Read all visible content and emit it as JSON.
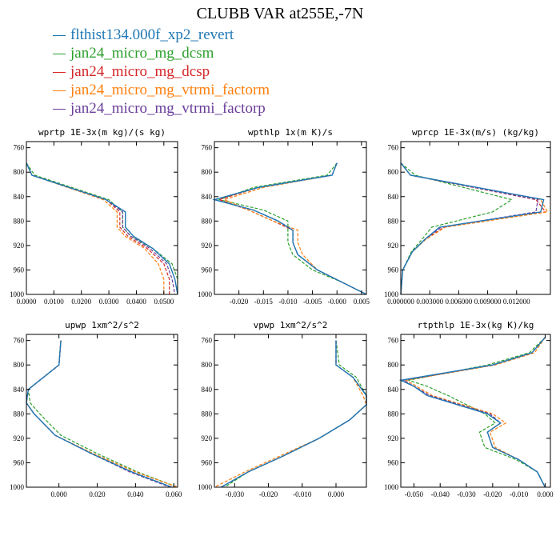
{
  "title": "CLUBB VAR at255E,-7N",
  "legend": [
    {
      "name": "flthist134.000f_xp2_revert",
      "color": "#1f77b4",
      "dash": false
    },
    {
      "name": "jan24_micro_mg_dcsm",
      "color": "#2ca02c",
      "dash": true
    },
    {
      "name": "jan24_micro_mg_dcsp",
      "color": "#d62728",
      "dash": true
    },
    {
      "name": "jan24_micro_mg_vtrmi_factorm",
      "color": "#ff7f0e",
      "dash": true
    },
    {
      "name": "jan24_micro_mg_vtrmi_factorp",
      "color": "#6a3d9a",
      "dash": true
    }
  ],
  "chart_data": [
    {
      "type": "line",
      "title": "wprtp  1E-3x(m kg)/(s kg)",
      "xlim": [
        0,
        0.055
      ],
      "ylim": [
        1000,
        750
      ],
      "xticks": [
        0,
        0.01,
        0.02,
        0.03,
        0.04,
        0.05
      ],
      "xtick_labels": [
        "0.0000",
        "0.0100",
        "0.0200",
        "0.0300",
        "0.0400",
        "0.0500"
      ],
      "yticks": [
        760,
        800,
        840,
        880,
        920,
        960,
        1000
      ],
      "y": [
        785,
        805,
        845,
        865,
        890,
        905,
        925,
        950,
        975,
        1000
      ],
      "series": [
        {
          "name": "flthist134.000f_xp2_revert",
          "x": [
            0,
            0.002,
            0.029,
            0.036,
            0.036,
            0.039,
            0.046,
            0.052,
            0.054,
            0.055
          ]
        },
        {
          "name": "jan24_micro_mg_dcsm",
          "x": [
            0,
            0.003,
            0.03,
            0.035,
            0.035,
            0.038,
            0.046,
            0.053,
            0.055,
            0.055
          ]
        },
        {
          "name": "jan24_micro_mg_dcsp",
          "x": [
            0,
            0.002,
            0.029,
            0.034,
            0.034,
            0.037,
            0.044,
            0.05,
            0.052,
            0.052
          ]
        },
        {
          "name": "jan24_micro_mg_vtrmi_factorm",
          "x": [
            0,
            0.002,
            0.028,
            0.033,
            0.033,
            0.036,
            0.043,
            0.048,
            0.05,
            0.05
          ]
        },
        {
          "name": "jan24_micro_mg_vtrmi_factorp",
          "x": [
            0,
            0.002,
            0.029,
            0.035,
            0.035,
            0.038,
            0.045,
            0.051,
            0.053,
            0.054
          ]
        }
      ]
    },
    {
      "type": "line",
      "title": "wpthlp  1x(m K)/s",
      "xlim": [
        -0.025,
        0.006
      ],
      "ylim": [
        1000,
        750
      ],
      "xticks": [
        -0.02,
        -0.015,
        -0.01,
        -0.005,
        0,
        0.005
      ],
      "xtick_labels": [
        "-0.020",
        "-0.015",
        "-0.010",
        "-0.005",
        "-0.000",
        "0.005"
      ],
      "yticks": [
        760,
        800,
        840,
        880,
        920,
        960,
        1000
      ],
      "y": [
        785,
        805,
        825,
        845,
        862,
        880,
        895,
        915,
        935,
        960,
        980,
        1000
      ],
      "series": [
        {
          "name": "flthist134.000f_xp2_revert",
          "x": [
            0,
            -0.001,
            -0.016,
            -0.025,
            -0.017,
            -0.012,
            -0.009,
            -0.009,
            -0.008,
            -0.004,
            0.001,
            0.006
          ]
        },
        {
          "name": "jan24_micro_mg_dcsm",
          "x": [
            0,
            -0.002,
            -0.017,
            -0.024,
            -0.015,
            -0.01,
            -0.01,
            -0.01,
            -0.009,
            -0.005,
            0.001,
            0.006
          ]
        },
        {
          "name": "jan24_micro_mg_dcsp",
          "x": [
            0,
            -0.001,
            -0.016,
            -0.024,
            -0.018,
            -0.013,
            -0.009,
            -0.009,
            -0.008,
            -0.004,
            0.001,
            0.006
          ]
        },
        {
          "name": "jan24_micro_mg_vtrmi_factorm",
          "x": [
            0,
            -0.001,
            -0.015,
            -0.023,
            -0.018,
            -0.013,
            -0.008,
            -0.008,
            -0.007,
            -0.004,
            0.001,
            0.006
          ]
        },
        {
          "name": "jan24_micro_mg_vtrmi_factorp",
          "x": [
            0,
            -0.001,
            -0.016,
            -0.025,
            -0.017,
            -0.012,
            -0.009,
            -0.009,
            -0.008,
            -0.004,
            0.001,
            0.006
          ]
        }
      ]
    },
    {
      "type": "line",
      "title": "wprcp  1E-3x(m/s) (kg/kg)",
      "xlim": [
        0,
        0.0155
      ],
      "ylim": [
        1000,
        750
      ],
      "xticks": [
        0,
        0.003,
        0.006,
        0.009,
        0.012
      ],
      "xtick_labels": [
        "0.000000",
        "0.003000",
        "0.006000",
        "0.009000",
        "0.012000"
      ],
      "yticks": [
        760,
        800,
        840,
        880,
        920,
        960,
        1000
      ],
      "y": [
        785,
        805,
        845,
        865,
        890,
        910,
        930,
        960,
        1000
      ],
      "series": [
        {
          "name": "flthist134.000f_xp2_revert",
          "x": [
            0,
            0.001,
            0.0148,
            0.0145,
            0.004,
            0.0025,
            0.0012,
            0.0002,
            0
          ]
        },
        {
          "name": "jan24_micro_mg_dcsm",
          "x": [
            0,
            0.0015,
            0.0115,
            0.0095,
            0.0032,
            0.0022,
            0.0011,
            0.0002,
            0
          ]
        },
        {
          "name": "jan24_micro_mg_dcsp",
          "x": [
            0,
            0.001,
            0.014,
            0.015,
            0.0045,
            0.0025,
            0.0012,
            0.0002,
            0
          ]
        },
        {
          "name": "jan24_micro_mg_vtrmi_factorm",
          "x": [
            0,
            0.001,
            0.0145,
            0.0152,
            0.0046,
            0.0026,
            0.0012,
            0.0002,
            0
          ]
        },
        {
          "name": "jan24_micro_mg_vtrmi_factorp",
          "x": [
            0,
            0.001,
            0.0142,
            0.014,
            0.0042,
            0.0025,
            0.0012,
            0.0002,
            0
          ]
        }
      ]
    },
    {
      "type": "line",
      "title": "upwp  1xm^2/s^2",
      "xlim": [
        -0.017,
        0.062
      ],
      "ylim": [
        1000,
        750
      ],
      "xticks": [
        0,
        0.02,
        0.04,
        0.06
      ],
      "xtick_labels": [
        "0.000",
        "0.020",
        "0.040",
        "0.060"
      ],
      "yticks": [
        760,
        800,
        840,
        880,
        920,
        960,
        1000
      ],
      "y": [
        760,
        800,
        840,
        862,
        880,
        915,
        945,
        975,
        1000
      ],
      "series": [
        {
          "name": "flthist134.000f_xp2_revert",
          "x": [
            0.001,
            0,
            -0.016,
            -0.017,
            -0.013,
            -0.002,
            0.017,
            0.038,
            0.059
          ]
        },
        {
          "name": "jan24_micro_mg_dcsm",
          "x": [
            0.001,
            0,
            -0.016,
            -0.015,
            -0.01,
            0.001,
            0.02,
            0.041,
            0.062
          ]
        },
        {
          "name": "jan24_micro_mg_dcsp",
          "x": [
            0.001,
            0,
            -0.016,
            -0.017,
            -0.013,
            -0.002,
            0.017,
            0.038,
            0.059
          ]
        },
        {
          "name": "jan24_micro_mg_vtrmi_factorm",
          "x": [
            0.001,
            0,
            -0.016,
            -0.017,
            -0.013,
            -0.002,
            0.018,
            0.04,
            0.062
          ]
        },
        {
          "name": "jan24_micro_mg_vtrmi_factorp",
          "x": [
            0.001,
            0,
            -0.016,
            -0.017,
            -0.013,
            -0.002,
            0.017,
            0.037,
            0.058
          ]
        }
      ]
    },
    {
      "type": "line",
      "title": "vpwp  1xm^2/s^2",
      "xlim": [
        -0.036,
        0.009
      ],
      "ylim": [
        1000,
        750
      ],
      "xticks": [
        -0.03,
        -0.02,
        -0.01,
        0
      ],
      "xtick_labels": [
        "-0.030",
        "-0.020",
        "-0.010",
        "0.000"
      ],
      "yticks": [
        760,
        800,
        840,
        880,
        920,
        960,
        1000
      ],
      "y": [
        760,
        800,
        820,
        850,
        865,
        890,
        920,
        950,
        975,
        1000
      ],
      "series": [
        {
          "name": "flthist134.000f_xp2_revert",
          "x": [
            0,
            0,
            0.005,
            0.009,
            0.009,
            0.004,
            -0.005,
            -0.016,
            -0.026,
            -0.034
          ]
        },
        {
          "name": "jan24_micro_mg_dcsm",
          "x": [
            0,
            0.001,
            0.006,
            0.009,
            0.009,
            0.004,
            -0.005,
            -0.016,
            -0.026,
            -0.033
          ]
        },
        {
          "name": "jan24_micro_mg_dcsp",
          "x": [
            0,
            0,
            0.005,
            0.009,
            0.009,
            0.004,
            -0.005,
            -0.016,
            -0.026,
            -0.034
          ]
        },
        {
          "name": "jan24_micro_mg_vtrmi_factorm",
          "x": [
            0,
            0,
            0.005,
            0.008,
            0.009,
            0.004,
            -0.005,
            -0.017,
            -0.027,
            -0.036
          ]
        },
        {
          "name": "jan24_micro_mg_vtrmi_factorp",
          "x": [
            0,
            0,
            0.005,
            0.009,
            0.009,
            0.004,
            -0.005,
            -0.016,
            -0.026,
            -0.034
          ]
        }
      ]
    },
    {
      "type": "line",
      "title": "rtpthlp  1E-3x(kg K)/kg",
      "xlim": [
        -0.055,
        0.002
      ],
      "ylim": [
        1000,
        750
      ],
      "xticks": [
        -0.05,
        -0.04,
        -0.03,
        -0.02,
        -0.01,
        0
      ],
      "xtick_labels": [
        "-0.050",
        "-0.040",
        "-0.030",
        "-0.020",
        "-0.010",
        "0.000"
      ],
      "yticks": [
        760,
        800,
        840,
        880,
        920,
        960,
        1000
      ],
      "y": [
        755,
        780,
        800,
        825,
        835,
        850,
        880,
        895,
        910,
        935,
        955,
        975,
        1000
      ],
      "series": [
        {
          "name": "flthist134.000f_xp2_revert",
          "x": [
            0,
            -0.005,
            -0.02,
            -0.055,
            -0.05,
            -0.045,
            -0.022,
            -0.017,
            -0.022,
            -0.02,
            -0.01,
            -0.003,
            0
          ]
        },
        {
          "name": "jan24_micro_mg_dcsm",
          "x": [
            0,
            -0.006,
            -0.022,
            -0.052,
            -0.045,
            -0.037,
            -0.023,
            -0.019,
            -0.025,
            -0.023,
            -0.011,
            -0.003,
            0
          ]
        },
        {
          "name": "jan24_micro_mg_dcsp",
          "x": [
            0,
            -0.005,
            -0.02,
            -0.054,
            -0.05,
            -0.044,
            -0.021,
            -0.017,
            -0.022,
            -0.02,
            -0.01,
            -0.003,
            0
          ]
        },
        {
          "name": "jan24_micro_mg_vtrmi_factorm",
          "x": [
            0,
            -0.004,
            -0.019,
            -0.053,
            -0.049,
            -0.043,
            -0.02,
            -0.015,
            -0.021,
            -0.019,
            -0.01,
            -0.003,
            0
          ]
        },
        {
          "name": "jan24_micro_mg_vtrmi_factorp",
          "x": [
            0,
            -0.005,
            -0.02,
            -0.054,
            -0.05,
            -0.044,
            -0.021,
            -0.017,
            -0.022,
            -0.02,
            -0.01,
            -0.003,
            0
          ]
        }
      ]
    }
  ]
}
